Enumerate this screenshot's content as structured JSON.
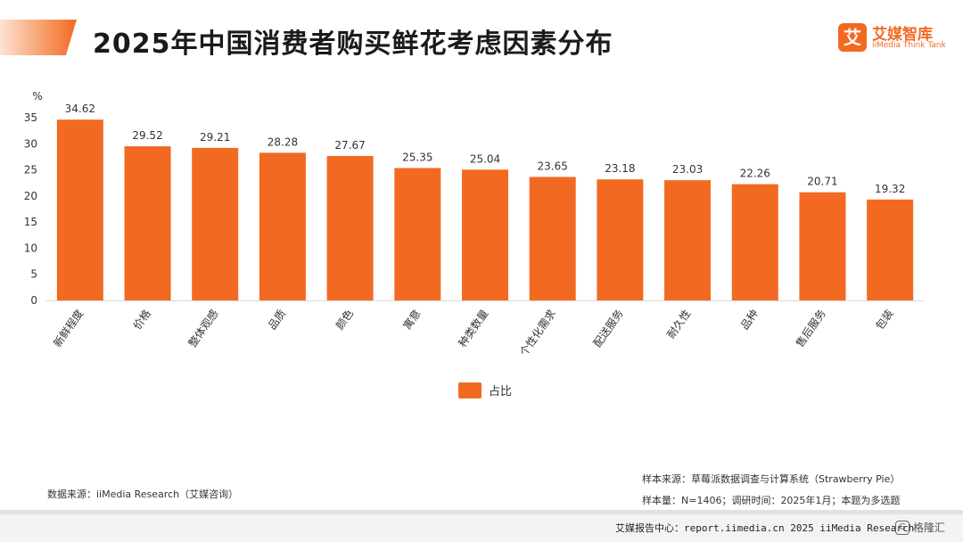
{
  "header": {
    "title": "2025年中国消费者购买鲜花考虑因素分布",
    "logo_glyph": "艾",
    "logo_name": "艾媒智库",
    "logo_sub": "iiMedia Think Tank"
  },
  "colors": {
    "accent": "#f26a22",
    "bar": "#f26a22"
  },
  "chart_data": {
    "type": "bar",
    "title": "",
    "ylabel": "%",
    "xlabel": "",
    "ylim": [
      0,
      35
    ],
    "yticks": [
      0,
      5,
      10,
      15,
      20,
      25,
      30,
      35
    ],
    "categories": [
      "新鲜程度",
      "价格",
      "整体观感",
      "品质",
      "颜色",
      "寓意",
      "种类数量",
      "个性化需求",
      "配送服务",
      "耐久性",
      "品种",
      "售后服务",
      "包装"
    ],
    "series": [
      {
        "name": "占比",
        "values": [
          34.62,
          29.52,
          29.21,
          28.28,
          27.67,
          25.35,
          25.04,
          23.65,
          23.18,
          23.03,
          22.26,
          20.71,
          19.32
        ]
      }
    ],
    "grid": false,
    "legend": "bottom-center",
    "data_labels": true
  },
  "footer": {
    "source": "数据来源：iiMedia Research（艾媒咨询）",
    "sample_source": "样本来源：草莓派数据调查与计算系统（Strawberry Pie）",
    "sample_size": "样本量：N=1406；调研时间：2025年1月；本题为多选题",
    "bottom": "艾媒报告中心：report.iimedia.cn  2025 iiMedia Research",
    "watermark": "格隆汇"
  }
}
